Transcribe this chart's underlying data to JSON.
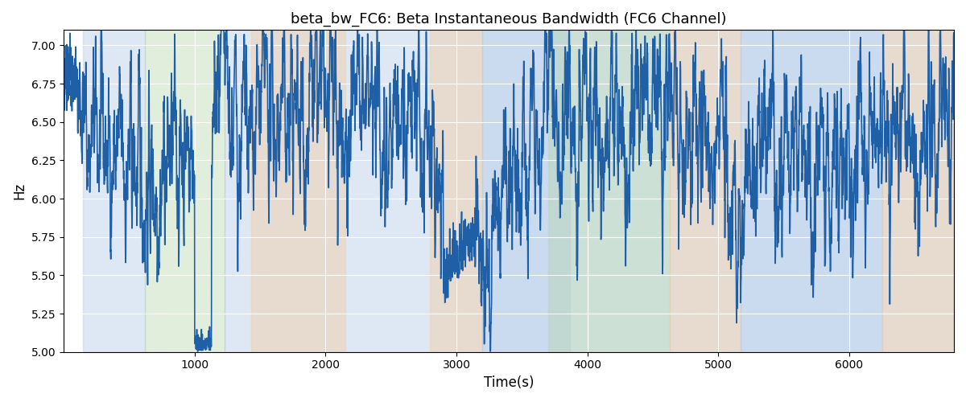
{
  "title": "beta_bw_FC6: Beta Instantaneous Bandwidth (FC6 Channel)",
  "xlabel": "Time(s)",
  "ylabel": "Hz",
  "ylim": [
    5.0,
    7.1
  ],
  "xlim": [
    0,
    6800
  ],
  "yticks": [
    5.0,
    5.25,
    5.5,
    5.75,
    6.0,
    6.25,
    6.5,
    6.75,
    7.0
  ],
  "xticks": [
    1000,
    2000,
    3000,
    4000,
    5000,
    6000
  ],
  "figsize": [
    12,
    5
  ],
  "dpi": 100,
  "line_color": "#1f5fa6",
  "line_width": 1.2,
  "bg_blue": "#adc6e8",
  "bg_green": "#b5d5a8",
  "bg_orange": "#f5c89a",
  "bg_alpha": 0.4,
  "regions": [
    {
      "color": "blue",
      "xstart": 150,
      "xend": 620
    },
    {
      "color": "green",
      "xstart": 620,
      "xend": 1230
    },
    {
      "color": "blue",
      "xstart": 1230,
      "xend": 6800
    },
    {
      "color": "orange",
      "xstart": 1430,
      "xend": 2150
    },
    {
      "color": "orange",
      "xstart": 2800,
      "xend": 3200
    },
    {
      "color": "blue",
      "xstart": 3200,
      "xend": 3870
    },
    {
      "color": "green",
      "xstart": 3700,
      "xend": 4630
    },
    {
      "color": "orange",
      "xstart": 4630,
      "xend": 5170
    },
    {
      "color": "blue",
      "xstart": 5170,
      "xend": 6250
    },
    {
      "color": "orange",
      "xstart": 6250,
      "xend": 6800
    }
  ],
  "seed": 42
}
